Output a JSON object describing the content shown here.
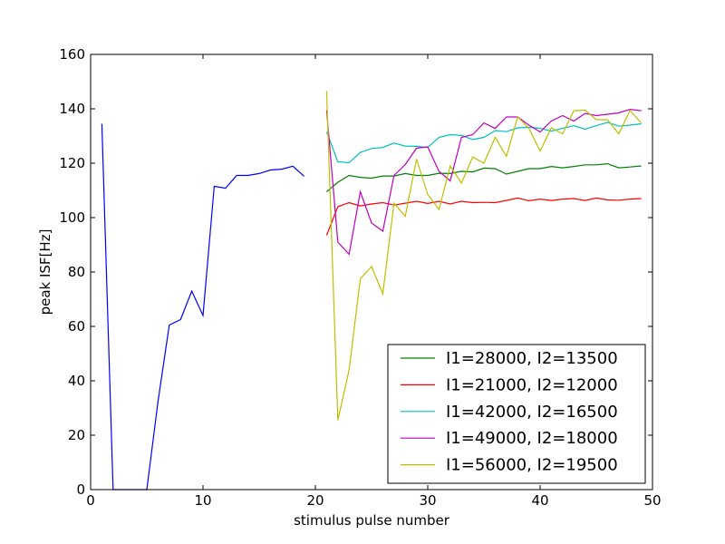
{
  "chart_data": {
    "type": "line",
    "title": "",
    "xlabel": "stimulus pulse number",
    "ylabel": "peak ISF[Hz]",
    "xlim": [
      0,
      50
    ],
    "ylim": [
      0,
      160
    ],
    "xticks": [
      0,
      10,
      20,
      30,
      40,
      50
    ],
    "yticks": [
      0,
      20,
      40,
      60,
      80,
      100,
      120,
      140,
      160
    ],
    "grid": false,
    "legend_position": "lower-right",
    "series": [
      {
        "name": "",
        "color": "#0000ff",
        "x": [
          1,
          2,
          3,
          4,
          5,
          6,
          7,
          8,
          9,
          10,
          11,
          12,
          13,
          14,
          15,
          16,
          17,
          18,
          19
        ],
        "y": [
          134.5,
          0,
          0,
          0,
          0,
          32.5,
          60.5,
          62.5,
          73,
          64,
          111.5,
          110.8,
          115.5,
          115.5,
          116.2,
          117.5,
          117.8,
          118.9,
          115.2
        ]
      },
      {
        "name": "I1=28000, I2=13500",
        "color": "#008000",
        "x": [
          21,
          22,
          23,
          24,
          25,
          26,
          27,
          28,
          29,
          30,
          31,
          32,
          33,
          34,
          35,
          36,
          37,
          38,
          39,
          40,
          41,
          42,
          43,
          44,
          45,
          46,
          47,
          48,
          49
        ],
        "y": [
          109.5,
          113,
          115.5,
          114.8,
          114.5,
          115.3,
          115.3,
          116.2,
          115.5,
          115.5,
          116.3,
          116.2,
          117,
          116.8,
          118.2,
          118,
          116,
          117,
          118,
          118,
          118.8,
          118.3,
          118.8,
          119.4,
          119.4,
          119.8,
          118.3,
          118.6,
          119
        ]
      },
      {
        "name": "I1=21000, I2=12000",
        "color": "#ff0000",
        "x": [
          21,
          22,
          23,
          24,
          25,
          26,
          27,
          28,
          29,
          30,
          31,
          32,
          33,
          34,
          35,
          36,
          37,
          38,
          39,
          40,
          41,
          42,
          43,
          44,
          45,
          46,
          47,
          48,
          49
        ],
        "y": [
          93.5,
          104,
          105.5,
          104.3,
          105,
          105.5,
          104.6,
          105.3,
          106,
          105.2,
          106,
          105,
          106,
          105.5,
          105.6,
          105.5,
          106.3,
          107.2,
          106.2,
          106.8,
          106.3,
          106.8,
          107,
          106.3,
          107.2,
          106.5,
          106.4,
          106.8,
          107
        ]
      },
      {
        "name": "I1=42000, I2=16500",
        "color": "#00bfbf",
        "x": [
          21,
          22,
          23,
          24,
          25,
          26,
          27,
          28,
          29,
          30,
          31,
          32,
          33,
          34,
          35,
          36,
          37,
          38,
          39,
          40,
          41,
          42,
          43,
          44,
          45,
          46,
          47,
          48,
          49
        ],
        "y": [
          131.5,
          120.5,
          120.2,
          124,
          125.4,
          125.8,
          127.4,
          126.3,
          126.2,
          125.8,
          129.5,
          130.5,
          130.2,
          128.7,
          129.5,
          132,
          131.6,
          133,
          133.2,
          132.8,
          131.8,
          132.8,
          133.8,
          132.5,
          133.8,
          135,
          133.6,
          134,
          134.5
        ]
      },
      {
        "name": "I1=49000, I2=18000",
        "color": "#bf00bf",
        "x": [
          21,
          22,
          23,
          24,
          25,
          26,
          27,
          28,
          29,
          30,
          31,
          32,
          33,
          34,
          35,
          36,
          37,
          38,
          39,
          40,
          41,
          42,
          43,
          44,
          45,
          46,
          47,
          48,
          49
        ],
        "y": [
          139.5,
          91,
          86.5,
          109.5,
          98,
          95,
          115.5,
          119.5,
          125.5,
          126,
          117,
          113.5,
          129.5,
          130.5,
          134.8,
          132.8,
          137,
          137,
          134,
          131.5,
          135.5,
          137.5,
          135.5,
          138.3,
          137.5,
          138,
          138.5,
          139.8,
          139.3
        ]
      },
      {
        "name": "I1=56000, I2=19500",
        "color": "#bfbf00",
        "x": [
          21,
          22,
          23,
          24,
          25,
          26,
          27,
          28,
          29,
          30,
          31,
          32,
          33,
          34,
          35,
          36,
          37,
          38,
          39,
          40,
          41,
          42,
          43,
          44,
          45,
          46,
          47,
          48,
          49
        ],
        "y": [
          146.5,
          25.5,
          44,
          77.5,
          82,
          72,
          105.3,
          100.5,
          121.5,
          108.5,
          103,
          119,
          112.7,
          122.3,
          120,
          129.5,
          122.5,
          137,
          132.8,
          124.5,
          133,
          130.8,
          139.3,
          139.5,
          136,
          136,
          130.8,
          139.4,
          134.8
        ]
      }
    ]
  }
}
